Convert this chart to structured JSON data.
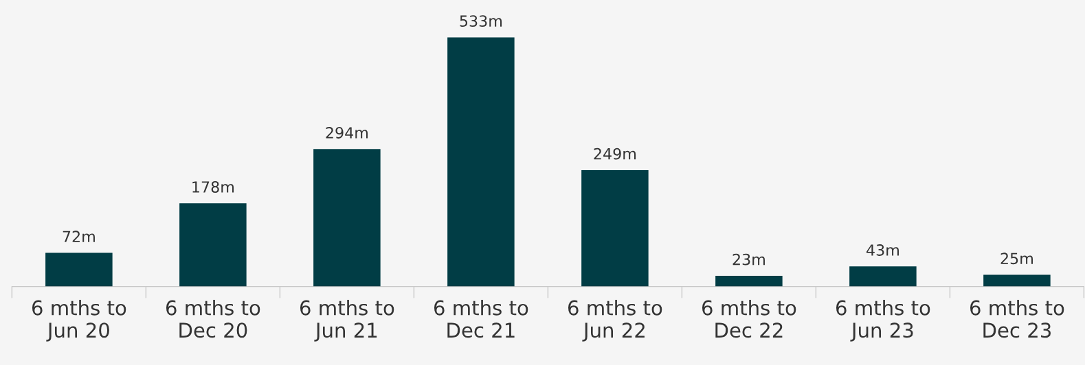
{
  "chart_data": {
    "type": "bar",
    "categories": [
      "6 mths to\nJun 20",
      "6 mths to\nDec 20",
      "6 mths to\nJun 21",
      "6 mths to\nDec 21",
      "6 mths to\nJun 22",
      "6 mths to\nDec 22",
      "6 mths to\nJun 23",
      "6 mths to\nDec 23"
    ],
    "values": [
      72,
      178,
      294,
      533,
      249,
      23,
      43,
      25
    ],
    "value_labels": [
      "72m",
      "178m",
      "294m",
      "533m",
      "249m",
      "23m",
      "43m",
      "25m"
    ],
    "color": "#013d45",
    "grid": false,
    "legend": false,
    "tick_labels": "x"
  }
}
